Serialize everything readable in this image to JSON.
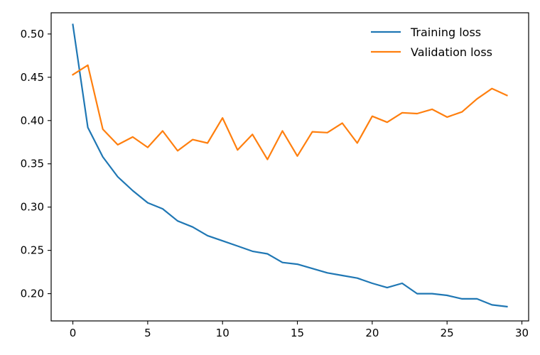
{
  "chart_data": {
    "type": "line",
    "title": "",
    "xlabel": "",
    "ylabel": "",
    "xlim": [
      -1.45,
      30.45
    ],
    "ylim": [
      0.1685,
      0.5245
    ],
    "xticks": [
      0,
      5,
      10,
      15,
      20,
      25,
      30
    ],
    "xtick_labels": [
      "0",
      "5",
      "10",
      "15",
      "20",
      "25",
      "30"
    ],
    "yticks": [
      0.2,
      0.25,
      0.3,
      0.35,
      0.4,
      0.45,
      0.5
    ],
    "ytick_labels": [
      "0.20",
      "0.25",
      "0.30",
      "0.35",
      "0.40",
      "0.45",
      "0.50"
    ],
    "grid": false,
    "legend_position": "top-right",
    "x": [
      0,
      1,
      2,
      3,
      4,
      5,
      6,
      7,
      8,
      9,
      10,
      11,
      12,
      13,
      14,
      15,
      16,
      17,
      18,
      19,
      20,
      21,
      22,
      23,
      24,
      25,
      26,
      27,
      28,
      29
    ],
    "series": [
      {
        "name": "Training loss",
        "color": "#1f77b4",
        "values": [
          0.511,
          0.392,
          0.358,
          0.335,
          0.319,
          0.305,
          0.298,
          0.284,
          0.277,
          0.267,
          0.261,
          0.255,
          0.249,
          0.246,
          0.236,
          0.234,
          0.229,
          0.224,
          0.221,
          0.218,
          0.212,
          0.207,
          0.212,
          0.2,
          0.2,
          0.198,
          0.194,
          0.194,
          0.187,
          0.185
        ]
      },
      {
        "name": "Validation loss",
        "color": "#ff7f0e",
        "values": [
          0.453,
          0.464,
          0.39,
          0.372,
          0.381,
          0.369,
          0.388,
          0.365,
          0.378,
          0.374,
          0.403,
          0.366,
          0.384,
          0.355,
          0.388,
          0.359,
          0.387,
          0.386,
          0.397,
          0.374,
          0.405,
          0.398,
          0.409,
          0.408,
          0.413,
          0.404,
          0.41,
          0.425,
          0.437,
          0.429
        ]
      }
    ]
  }
}
